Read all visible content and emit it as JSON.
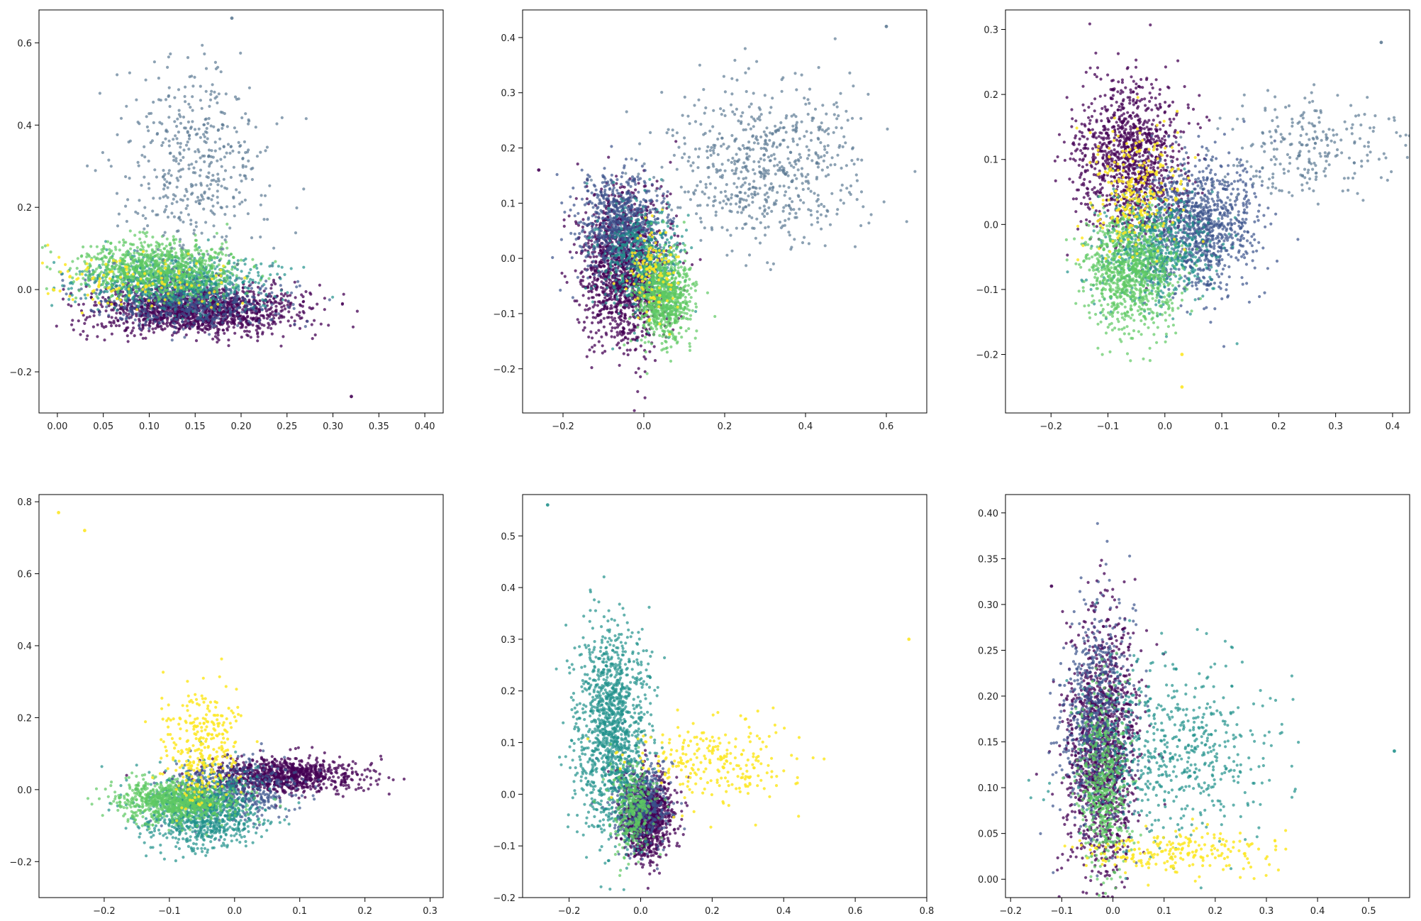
{
  "figure": {
    "panel_count": 6,
    "background": "#ffffff",
    "colormap": "viridis",
    "palette": [
      "#440154",
      "#3b528b",
      "#21918c",
      "#5ec962",
      "#fde725",
      "#5d7a94"
    ]
  },
  "chart_data": [
    {
      "type": "scatter",
      "title": "",
      "xlabel": "",
      "ylabel": "",
      "xlim": [
        -0.02,
        0.42
      ],
      "ylim": [
        -0.3,
        0.68
      ],
      "xticks": [
        0.0,
        0.05,
        0.1,
        0.15,
        0.2,
        0.25,
        0.3,
        0.35,
        0.4
      ],
      "xtick_labels": [
        "0.00",
        "0.05",
        "0.10",
        "0.15",
        "0.20",
        "0.25",
        "0.30",
        "0.35",
        "0.40"
      ],
      "yticks": [
        -0.2,
        0.0,
        0.2,
        0.4,
        0.6
      ],
      "ytick_labels": [
        "−0.2",
        "0.0",
        "0.2",
        "0.4",
        "0.6"
      ],
      "grid": false,
      "legend": "none",
      "clusters": [
        {
          "color": "#440154",
          "n": 1500,
          "center": [
            0.15,
            -0.05
          ],
          "spread": [
            0.055,
            0.03
          ],
          "alpha": 0.75
        },
        {
          "color": "#3b528b",
          "n": 600,
          "center": [
            0.14,
            -0.03
          ],
          "spread": [
            0.05,
            0.03
          ],
          "alpha": 0.7
        },
        {
          "color": "#21918c",
          "n": 700,
          "center": [
            0.13,
            0.02
          ],
          "spread": [
            0.05,
            0.03
          ],
          "alpha": 0.7
        },
        {
          "color": "#5ec962",
          "n": 900,
          "center": [
            0.11,
            0.05
          ],
          "spread": [
            0.045,
            0.035
          ],
          "alpha": 0.7
        },
        {
          "color": "#fde725",
          "n": 120,
          "center": [
            0.08,
            0.02
          ],
          "spread": [
            0.06,
            0.03
          ],
          "alpha": 0.85
        },
        {
          "color": "#5d7a94",
          "n": 450,
          "center": [
            0.15,
            0.3
          ],
          "spread": [
            0.04,
            0.12
          ],
          "alpha": 0.7
        }
      ],
      "points": [
        {
          "x": 0.32,
          "y": -0.26,
          "color": "#440154"
        },
        {
          "x": 0.19,
          "y": 0.66,
          "color": "#5d7a94"
        }
      ]
    },
    {
      "type": "scatter",
      "title": "",
      "xlabel": "",
      "ylabel": "",
      "xlim": [
        -0.3,
        0.7
      ],
      "ylim": [
        -0.28,
        0.45
      ],
      "xticks": [
        -0.2,
        0.0,
        0.2,
        0.4,
        0.6
      ],
      "xtick_labels": [
        "−0.2",
        "0.0",
        "0.2",
        "0.4",
        "0.6"
      ],
      "yticks": [
        -0.2,
        -0.1,
        0.0,
        0.1,
        0.2,
        0.3,
        0.4
      ],
      "ytick_labels": [
        "−0.2",
        "−0.1",
        "0.0",
        "0.1",
        "0.2",
        "0.3",
        "0.4"
      ],
      "grid": false,
      "legend": "none",
      "clusters": [
        {
          "color": "#440154",
          "n": 1400,
          "center": [
            -0.05,
            -0.02
          ],
          "spread": [
            0.05,
            0.07
          ],
          "alpha": 0.75
        },
        {
          "color": "#3b528b",
          "n": 700,
          "center": [
            -0.06,
            0.06
          ],
          "spread": [
            0.05,
            0.05
          ],
          "alpha": 0.7
        },
        {
          "color": "#21918c",
          "n": 500,
          "center": [
            0.0,
            0.0
          ],
          "spread": [
            0.05,
            0.05
          ],
          "alpha": 0.7
        },
        {
          "color": "#5ec962",
          "n": 800,
          "center": [
            0.05,
            -0.07
          ],
          "spread": [
            0.035,
            0.04
          ],
          "alpha": 0.7
        },
        {
          "color": "#fde725",
          "n": 120,
          "center": [
            0.02,
            -0.02
          ],
          "spread": [
            0.03,
            0.04
          ],
          "alpha": 0.85
        },
        {
          "color": "#5d7a94",
          "n": 650,
          "center": [
            0.3,
            0.17
          ],
          "spread": [
            0.12,
            0.07
          ],
          "alpha": 0.7
        }
      ],
      "points": [
        {
          "x": -0.26,
          "y": 0.16,
          "color": "#440154"
        },
        {
          "x": 0.6,
          "y": 0.42,
          "color": "#5d7a94"
        }
      ]
    },
    {
      "type": "scatter",
      "title": "",
      "xlabel": "",
      "ylabel": "",
      "xlim": [
        -0.28,
        0.43
      ],
      "ylim": [
        -0.29,
        0.33
      ],
      "xticks": [
        -0.2,
        -0.1,
        0.0,
        0.1,
        0.2,
        0.3,
        0.4
      ],
      "xtick_labels": [
        "−0.2",
        "−0.1",
        "0.0",
        "0.1",
        "0.2",
        "0.3",
        "0.4"
      ],
      "yticks": [
        -0.2,
        -0.1,
        0.0,
        0.1,
        0.2,
        0.3
      ],
      "ytick_labels": [
        "−0.2",
        "−0.1",
        "0.0",
        "0.1",
        "0.2",
        "0.3"
      ],
      "grid": false,
      "legend": "none",
      "clusters": [
        {
          "color": "#440154",
          "n": 1100,
          "center": [
            -0.06,
            0.1
          ],
          "spread": [
            0.05,
            0.06
          ],
          "alpha": 0.75
        },
        {
          "color": "#3b528b",
          "n": 1000,
          "center": [
            0.06,
            0.0
          ],
          "spread": [
            0.05,
            0.05
          ],
          "alpha": 0.7
        },
        {
          "color": "#21918c",
          "n": 600,
          "center": [
            -0.02,
            -0.04
          ],
          "spread": [
            0.05,
            0.04
          ],
          "alpha": 0.7
        },
        {
          "color": "#5ec962",
          "n": 900,
          "center": [
            -0.06,
            -0.07
          ],
          "spread": [
            0.04,
            0.045
          ],
          "alpha": 0.7
        },
        {
          "color": "#fde725",
          "n": 260,
          "center": [
            -0.05,
            0.05
          ],
          "spread": [
            0.04,
            0.05
          ],
          "alpha": 0.85
        },
        {
          "color": "#5d7a94",
          "n": 250,
          "center": [
            0.25,
            0.12
          ],
          "spread": [
            0.08,
            0.04
          ],
          "alpha": 0.7
        }
      ],
      "points": [
        {
          "x": 0.03,
          "y": -0.25,
          "color": "#fde725"
        },
        {
          "x": 0.03,
          "y": -0.2,
          "color": "#fde725"
        },
        {
          "x": 0.38,
          "y": 0.28,
          "color": "#5d7a94"
        }
      ]
    },
    {
      "type": "scatter",
      "title": "",
      "xlabel": "",
      "ylabel": "",
      "xlim": [
        -0.3,
        0.32
      ],
      "ylim": [
        -0.3,
        0.82
      ],
      "xticks": [
        -0.2,
        -0.1,
        0.0,
        0.1,
        0.2,
        0.3
      ],
      "xtick_labels": [
        "−0.2",
        "−0.1",
        "0.0",
        "0.1",
        "0.2",
        "0.3"
      ],
      "yticks": [
        -0.2,
        0.0,
        0.2,
        0.4,
        0.6,
        0.8
      ],
      "ytick_labels": [
        "−0.2",
        "0.0",
        "0.2",
        "0.4",
        "0.6",
        "0.8"
      ],
      "grid": false,
      "legend": "none",
      "clusters": [
        {
          "color": "#440154",
          "n": 900,
          "center": [
            0.08,
            0.04
          ],
          "spread": [
            0.06,
            0.025
          ],
          "alpha": 0.75
        },
        {
          "color": "#3b528b",
          "n": 500,
          "center": [
            0.0,
            0.0
          ],
          "spread": [
            0.05,
            0.04
          ],
          "alpha": 0.7
        },
        {
          "color": "#21918c",
          "n": 900,
          "center": [
            -0.05,
            -0.06
          ],
          "spread": [
            0.045,
            0.05
          ],
          "alpha": 0.7
        },
        {
          "color": "#5ec962",
          "n": 800,
          "center": [
            -0.09,
            -0.03
          ],
          "spread": [
            0.045,
            0.03
          ],
          "alpha": 0.7
        },
        {
          "color": "#fde725",
          "n": 300,
          "center": [
            -0.05,
            0.12
          ],
          "spread": [
            0.03,
            0.08
          ],
          "alpha": 0.85
        }
      ],
      "points": [
        {
          "x": -0.27,
          "y": 0.77,
          "color": "#fde725"
        },
        {
          "x": -0.23,
          "y": 0.72,
          "color": "#fde725"
        }
      ]
    },
    {
      "type": "scatter",
      "title": "",
      "xlabel": "",
      "ylabel": "",
      "xlim": [
        -0.33,
        0.8
      ],
      "ylim": [
        -0.2,
        0.58
      ],
      "xticks": [
        -0.2,
        0.0,
        0.2,
        0.4,
        0.6,
        0.8
      ],
      "xtick_labels": [
        "−0.2",
        "0.0",
        "0.2",
        "0.4",
        "0.6",
        "0.8"
      ],
      "yticks": [
        -0.2,
        -0.1,
        0.0,
        0.1,
        0.2,
        0.3,
        0.4,
        0.5
      ],
      "ytick_labels": [
        "−0.2",
        "−0.1",
        "0.0",
        "0.1",
        "0.2",
        "0.3",
        "0.4",
        "0.5"
      ],
      "grid": false,
      "legend": "none",
      "clusters": [
        {
          "color": "#440154",
          "n": 1000,
          "center": [
            0.02,
            -0.04
          ],
          "spread": [
            0.035,
            0.04
          ],
          "alpha": 0.75
        },
        {
          "color": "#3b528b",
          "n": 500,
          "center": [
            0.0,
            -0.02
          ],
          "spread": [
            0.04,
            0.04
          ],
          "alpha": 0.7
        },
        {
          "color": "#21918c",
          "n": 1200,
          "center": [
            -0.08,
            0.12
          ],
          "spread": [
            0.05,
            0.1
          ],
          "alpha": 0.7
        },
        {
          "color": "#5ec962",
          "n": 300,
          "center": [
            -0.02,
            -0.03
          ],
          "spread": [
            0.03,
            0.04
          ],
          "alpha": 0.7
        },
        {
          "color": "#fde725",
          "n": 250,
          "center": [
            0.2,
            0.06
          ],
          "spread": [
            0.12,
            0.04
          ],
          "alpha": 0.85
        }
      ],
      "points": [
        {
          "x": -0.26,
          "y": 0.56,
          "color": "#21918c"
        },
        {
          "x": 0.75,
          "y": 0.3,
          "color": "#fde725"
        }
      ]
    },
    {
      "type": "scatter",
      "title": "",
      "xlabel": "",
      "ylabel": "",
      "xlim": [
        -0.21,
        0.58
      ],
      "ylim": [
        -0.02,
        0.42
      ],
      "xticks": [
        -0.2,
        -0.1,
        0.0,
        0.1,
        0.2,
        0.3,
        0.4,
        0.5
      ],
      "xtick_labels": [
        "−0.2",
        "−0.1",
        "0.0",
        "0.1",
        "0.2",
        "0.3",
        "0.4",
        "0.5"
      ],
      "yticks": [
        0.0,
        0.05,
        0.1,
        0.15,
        0.2,
        0.25,
        0.3,
        0.35,
        0.4
      ],
      "ytick_labels": [
        "0.00",
        "0.05",
        "0.10",
        "0.15",
        "0.20",
        "0.25",
        "0.30",
        "0.35",
        "0.40"
      ],
      "grid": false,
      "legend": "none",
      "clusters": [
        {
          "color": "#440154",
          "n": 1300,
          "center": [
            -0.02,
            0.14
          ],
          "spread": [
            0.035,
            0.07
          ],
          "alpha": 0.75
        },
        {
          "color": "#3b528b",
          "n": 700,
          "center": [
            -0.03,
            0.17
          ],
          "spread": [
            0.035,
            0.06
          ],
          "alpha": 0.7
        },
        {
          "color": "#21918c",
          "n": 600,
          "center": [
            0.12,
            0.14
          ],
          "spread": [
            0.09,
            0.05
          ],
          "alpha": 0.7
        },
        {
          "color": "#5ec962",
          "n": 500,
          "center": [
            -0.02,
            0.1
          ],
          "spread": [
            0.025,
            0.05
          ],
          "alpha": 0.7
        },
        {
          "color": "#fde725",
          "n": 220,
          "center": [
            0.12,
            0.03
          ],
          "spread": [
            0.1,
            0.012
          ],
          "alpha": 0.85
        }
      ],
      "points": [
        {
          "x": -0.12,
          "y": 0.32,
          "color": "#440154"
        },
        {
          "x": 0.55,
          "y": 0.14,
          "color": "#21918c"
        }
      ]
    }
  ]
}
